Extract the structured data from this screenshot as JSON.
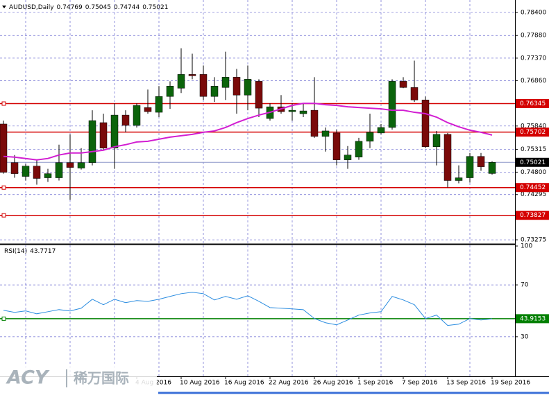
{
  "chart_data": [
    {
      "type": "candlestick",
      "title": "AUDUSD,Daily",
      "categories": [
        null,
        null,
        null,
        null,
        null,
        null,
        null,
        null,
        null,
        null,
        null,
        null,
        "4 Aug 2016",
        null,
        null,
        null,
        "10 Aug 2016",
        null,
        null,
        null,
        "16 Aug 2016",
        null,
        null,
        null,
        "22 Aug 2016",
        null,
        null,
        null,
        "26 Aug 2016",
        null,
        null,
        null,
        "1 Sep 2016",
        null,
        null,
        null,
        "7 Sep 2016",
        null,
        null,
        null,
        "13 Sep 2016",
        null,
        null,
        null,
        "19 Sep 2016"
      ],
      "open": [
        0.75885,
        0.75015,
        0.74704,
        0.74937,
        0.74673,
        0.74673,
        0.75015,
        0.74891,
        0.75015,
        0.75916,
        0.75341,
        0.76086,
        0.75854,
        0.76257,
        0.76149,
        0.76506,
        0.76692,
        0.77003,
        0.77003,
        0.76506,
        0.76708,
        0.76941,
        0.76537,
        0.76847,
        0.76009,
        0.76273,
        0.76164,
        0.76118,
        0.76195,
        0.75605,
        0.75683,
        0.75077,
        0.75139,
        0.75496,
        0.75683,
        0.75807,
        0.76847,
        0.76708,
        0.76428,
        0.75372,
        0.75652,
        0.74611,
        0.74673,
        0.75155,
        0.74769
      ],
      "high": [
        0.75962,
        0.75186,
        0.74984,
        0.75077,
        0.74875,
        0.75419,
        0.75652,
        0.75341,
        0.76195,
        0.76118,
        0.7635,
        0.76195,
        0.7635,
        0.76661,
        0.76739,
        0.76847,
        0.77593,
        0.77469,
        0.77205,
        0.76941,
        0.77515,
        0.77127,
        0.77205,
        0.76894,
        0.7635,
        0.76537,
        0.7635,
        0.7635,
        0.76941,
        0.75807,
        0.7576,
        0.75388,
        0.75574,
        0.76118,
        0.75885,
        0.76894,
        0.76941,
        0.77313,
        0.76506,
        0.75729,
        0.75683,
        0.74953,
        0.75232,
        0.75232,
        0.75045
      ],
      "low": [
        0.74766,
        0.74673,
        0.74611,
        0.74518,
        0.7458,
        0.74611,
        0.74176,
        0.7486,
        0.74953,
        0.75294,
        0.74875,
        0.75698,
        0.75807,
        0.76118,
        0.7604,
        0.76226,
        0.76583,
        0.76894,
        0.76428,
        0.76382,
        0.76428,
        0.76118,
        0.76195,
        0.7604,
        0.75962,
        0.76118,
        0.75962,
        0.7604,
        0.75574,
        0.75263,
        0.74953,
        0.74875,
        0.75077,
        0.75341,
        0.75652,
        0.7576,
        0.76692,
        0.76382,
        0.75341,
        0.74953,
        0.74456,
        0.74549,
        0.74565,
        0.74829,
        0.74744
      ],
      "close": [
        0.74797,
        0.74766,
        0.74937,
        0.74658,
        0.74766,
        0.75015,
        0.74906,
        0.75015,
        0.75962,
        0.75341,
        0.76086,
        0.75854,
        0.76304,
        0.76164,
        0.76506,
        0.76739,
        0.77003,
        0.76972,
        0.76506,
        0.76739,
        0.76941,
        0.76537,
        0.76894,
        0.76242,
        0.76273,
        0.76164,
        0.76195,
        0.7618,
        0.75605,
        0.75729,
        0.75077,
        0.75186,
        0.75496,
        0.75698,
        0.75807,
        0.76847,
        0.76708,
        0.76428,
        0.75372,
        0.75652,
        0.74611,
        0.74673,
        0.75155,
        0.74922,
        0.75021
      ],
      "up_color": "#0b640b",
      "down_color": "#7a0a0a",
      "ma": {
        "color": "#d21ed2",
        "values": [
          0.75155,
          0.75139,
          0.75108,
          0.75077,
          0.75108,
          0.75186,
          0.75232,
          0.75232,
          0.75263,
          0.75294,
          0.75372,
          0.75419,
          0.75481,
          0.75496,
          0.75543,
          0.7559,
          0.75621,
          0.75652,
          0.75698,
          0.75729,
          0.75807,
          0.75916,
          0.76009,
          0.76086,
          0.76149,
          0.76226,
          0.76304,
          0.7635,
          0.7635,
          0.76319,
          0.76304,
          0.76273,
          0.76257,
          0.76242,
          0.76226,
          0.76195,
          0.76195,
          0.76149,
          0.76118,
          0.7604,
          0.75916,
          0.75822,
          0.75745,
          0.75698,
          0.75636
        ]
      },
      "levels": [
        {
          "value": 0.76345,
          "color": "#d40000"
        },
        {
          "value": 0.75702,
          "color": "#d40000"
        },
        {
          "value": 0.74452,
          "color": "#d40000"
        },
        {
          "value": 0.73827,
          "color": "#d40000"
        }
      ],
      "last_price_color": "#8c96c8",
      "ylim": [
        0.73182,
        0.78649
      ],
      "yticks": [
        {
          "value": 0.784,
          "label": "0.78400"
        },
        {
          "value": 0.7788,
          "label": "0.77880"
        },
        {
          "value": 0.7737,
          "label": "0.77370"
        },
        {
          "value": 0.7686,
          "label": "0.76860"
        },
        0.76345,
        {
          "value": 0.7584,
          "label": "0.75840"
        },
        0.75315,
        {
          "value": 0.748,
          "label": "0.74800"
        },
        0.74295,
        0.73275
      ],
      "grid": true
    },
    {
      "type": "line",
      "title": "RSI(14)",
      "color": "#2a8ce0",
      "values": [
        50.4,
        48.8,
        49.9,
        47.7,
        49.3,
        50.9,
        49.9,
        52.0,
        58.9,
        54.7,
        58.9,
        56.3,
        57.9,
        57.3,
        58.9,
        61.1,
        63.2,
        64.3,
        63.2,
        58.4,
        61.1,
        58.9,
        61.6,
        57.3,
        52.5,
        52.0,
        51.5,
        50.9,
        44.0,
        40.8,
        39.2,
        42.9,
        46.7,
        48.3,
        49.3,
        61.1,
        58.4,
        54.7,
        44.0,
        46.7,
        38.7,
        39.7,
        44.0,
        42.9,
        43.7717
      ],
      "levels": [
        {
          "value": 43.9153,
          "color": "#008000"
        }
      ],
      "ylim": [
        0,
        100
      ],
      "yticks": [
        100,
        70,
        30
      ],
      "grid": true
    }
  ],
  "logo": {
    "brand": "ACY",
    "chinese": "稀万国际"
  }
}
